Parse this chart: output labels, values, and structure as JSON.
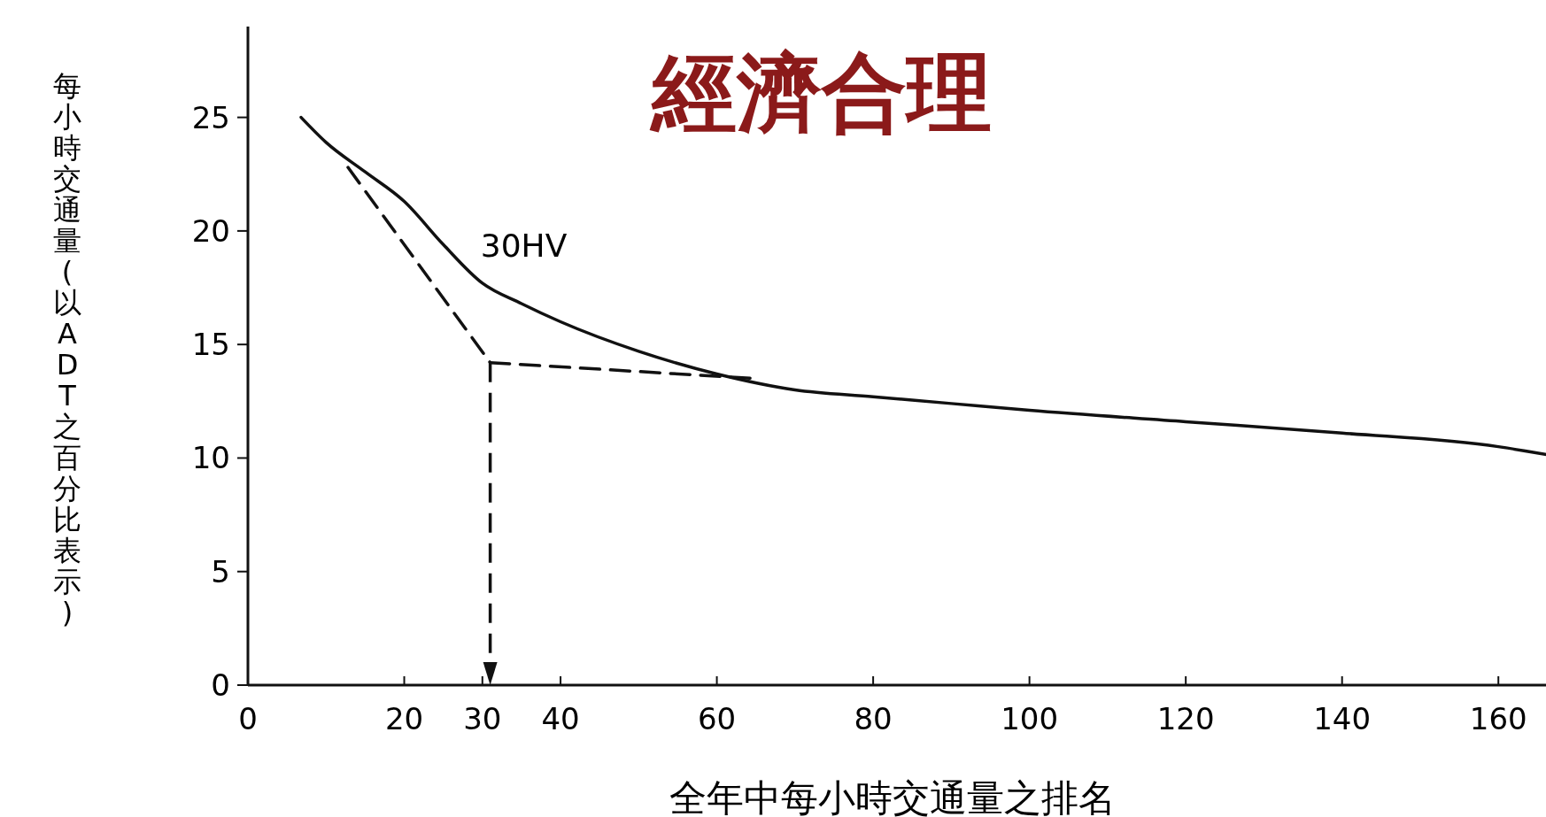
{
  "chart_data": {
    "type": "line",
    "title": "經濟合理",
    "xlabel": "全年中每小時交通量之排名",
    "ylabel": "每小時交通量(以ADT之百分比表示)",
    "xlim": [
      0,
      167
    ],
    "ylim": [
      0,
      29
    ],
    "xticks": [
      0,
      20,
      30,
      40,
      60,
      80,
      100,
      120,
      140,
      160
    ],
    "yticks": [
      0,
      5,
      10,
      15,
      20,
      25
    ],
    "grid": false,
    "marker": "none",
    "series": [
      {
        "color": "#111111",
        "line_style": "solid",
        "x": [
          6.8,
          10,
          15,
          20,
          25,
          30,
          35,
          40,
          50,
          60,
          70,
          80,
          90,
          100,
          120,
          140,
          160,
          167
        ],
        "values": [
          25,
          23.9,
          22.6,
          21.3,
          19.4,
          17.7,
          16.8,
          16,
          14.7,
          13.7,
          13,
          12.7,
          12.4,
          12.1,
          11.6,
          11.1,
          10.5,
          10.1
        ]
      },
      {
        "color": "#111111",
        "line_style": "dashed",
        "x": [
          12.8,
          31
        ],
        "values": [
          22.8,
          14.2
        ]
      },
      {
        "color": "#111111",
        "line_style": "dashed",
        "x": [
          31,
          65
        ],
        "values": [
          14.2,
          13.5
        ]
      }
    ],
    "annotations": [
      {
        "text": "30HV",
        "x": 30,
        "y": 17.7
      }
    ]
  }
}
